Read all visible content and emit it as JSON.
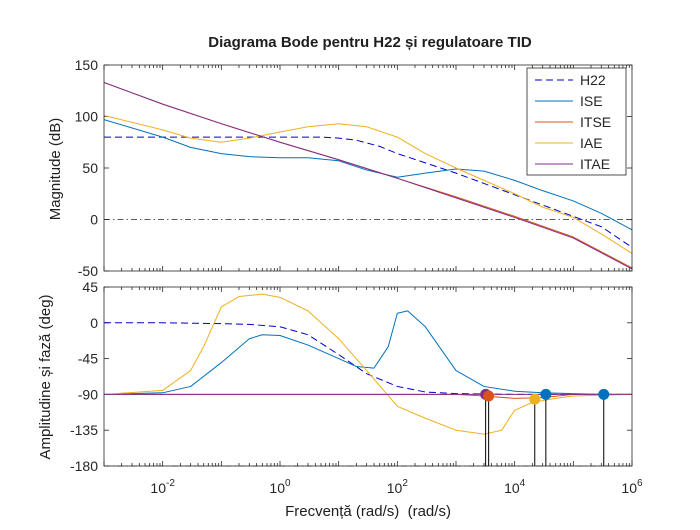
{
  "chart_data": {
    "type": "line",
    "title": "Diagrama Bode pentru H22 și regulatoare TID",
    "xlabel": "Frecvență (rad/s)  (rad/s)",
    "xscale": "log",
    "xlim": [
      0.001,
      1000000
    ],
    "x_tick_labels": [
      {
        "value": 0.01,
        "base": "10",
        "exp": "-2"
      },
      {
        "value": 1,
        "base": "10",
        "exp": "0"
      },
      {
        "value": 100,
        "base": "10",
        "exp": "2"
      },
      {
        "value": 10000,
        "base": "10",
        "exp": "4"
      },
      {
        "value": 1000000,
        "base": "10",
        "exp": "6"
      }
    ],
    "colors": {
      "H22": "#0000c8",
      "ISE": "#0072bd",
      "ITSE": "#d95319",
      "IAE": "#edb120",
      "ITAE": "#7e2f8e"
    },
    "legend": {
      "placement": "top-right",
      "entries": [
        "H22",
        "ISE",
        "ITSE",
        "IAE",
        "ITAE"
      ]
    },
    "magnitude": {
      "ylabel": "Magnitude (dB)",
      "ylim": [
        -50,
        150
      ],
      "yticks": [
        "-50",
        "0",
        "50",
        "100",
        "150"
      ],
      "reference_line": 0,
      "series": [
        {
          "name": "H22",
          "style": "dashed",
          "points": [
            [
              0.001,
              80
            ],
            [
              0.01,
              80
            ],
            [
              0.1,
              80
            ],
            [
              1,
              80
            ],
            [
              5,
              80
            ],
            [
              10,
              79
            ],
            [
              20,
              77
            ],
            [
              50,
              71
            ],
            [
              100,
              64
            ],
            [
              300,
              55
            ],
            [
              1000,
              45
            ],
            [
              3000,
              35
            ],
            [
              10000,
              24
            ],
            [
              30000,
              14
            ],
            [
              100000,
              3
            ],
            [
              300000,
              -7
            ],
            [
              1000000,
              -27
            ]
          ]
        },
        {
          "name": "ISE",
          "style": "solid",
          "points": [
            [
              0.001,
              97
            ],
            [
              0.01,
              80
            ],
            [
              0.03,
              70
            ],
            [
              0.1,
              64
            ],
            [
              0.3,
              61
            ],
            [
              1,
              60
            ],
            [
              3,
              60
            ],
            [
              10,
              57
            ],
            [
              30,
              48
            ],
            [
              100,
              41
            ],
            [
              300,
              45
            ],
            [
              1000,
              49
            ],
            [
              3000,
              47
            ],
            [
              10000,
              38
            ],
            [
              30000,
              28
            ],
            [
              100000,
              18
            ],
            [
              300000,
              6
            ],
            [
              1000000,
              -10
            ]
          ]
        },
        {
          "name": "ITSE",
          "style": "solid",
          "points": [
            [
              0.001,
              133
            ],
            [
              0.01,
              112
            ],
            [
              0.1,
              93
            ],
            [
              1,
              75
            ],
            [
              10,
              58
            ],
            [
              100,
              40
            ],
            [
              1000,
              22
            ],
            [
              10000,
              3
            ],
            [
              100000,
              -17
            ],
            [
              1000000,
              -47
            ]
          ]
        },
        {
          "name": "IAE",
          "style": "solid",
          "points": [
            [
              0.001,
              101
            ],
            [
              0.01,
              87
            ],
            [
              0.03,
              79
            ],
            [
              0.1,
              75
            ],
            [
              0.3,
              79
            ],
            [
              1,
              85
            ],
            [
              3,
              90
            ],
            [
              10,
              93
            ],
            [
              30,
              90
            ],
            [
              100,
              80
            ],
            [
              300,
              64
            ],
            [
              1000,
              50
            ],
            [
              3000,
              38
            ],
            [
              10000,
              25
            ],
            [
              30000,
              12
            ],
            [
              100000,
              2
            ],
            [
              300000,
              -14
            ],
            [
              1000000,
              -33
            ]
          ]
        },
        {
          "name": "ITAE",
          "style": "solid",
          "points": [
            [
              0.001,
              133
            ],
            [
              0.01,
              112
            ],
            [
              0.1,
              93
            ],
            [
              1,
              75
            ],
            [
              10,
              58
            ],
            [
              100,
              40
            ],
            [
              1000,
              21
            ],
            [
              10000,
              2
            ],
            [
              100000,
              -18
            ],
            [
              1000000,
              -48
            ]
          ]
        }
      ]
    },
    "phase": {
      "ylabel": "Amplitudine și fază (deg)",
      "ylim": [
        -180,
        45
      ],
      "yticks": [
        "-180",
        "-135",
        "-90",
        "-45",
        "0",
        "45"
      ],
      "reference_line": -180,
      "series": [
        {
          "name": "H22",
          "style": "dashed",
          "points": [
            [
              0.001,
              0
            ],
            [
              0.01,
              0
            ],
            [
              0.1,
              -1
            ],
            [
              0.3,
              -2
            ],
            [
              1,
              -5
            ],
            [
              3,
              -15
            ],
            [
              10,
              -40
            ],
            [
              30,
              -64
            ],
            [
              100,
              -80
            ],
            [
              300,
              -87
            ],
            [
              1000,
              -89
            ],
            [
              10000,
              -90
            ],
            [
              1000000,
              -90
            ]
          ]
        },
        {
          "name": "ISE",
          "style": "solid",
          "points": [
            [
              0.001,
              -90
            ],
            [
              0.01,
              -88
            ],
            [
              0.03,
              -80
            ],
            [
              0.1,
              -50
            ],
            [
              0.3,
              -20
            ],
            [
              0.5,
              -15
            ],
            [
              1,
              -16
            ],
            [
              3,
              -28
            ],
            [
              10,
              -45
            ],
            [
              20,
              -55
            ],
            [
              40,
              -57
            ],
            [
              70,
              -30
            ],
            [
              100,
              12
            ],
            [
              150,
              15
            ],
            [
              300,
              -5
            ],
            [
              1000,
              -60
            ],
            [
              3000,
              -80
            ],
            [
              10000,
              -86
            ],
            [
              30000,
              -88
            ],
            [
              100000,
              -89
            ],
            [
              300000,
              -90
            ],
            [
              1000000,
              -90
            ]
          ]
        },
        {
          "name": "ITSE",
          "style": "solid",
          "points": [
            [
              0.001,
              -90
            ],
            [
              10,
              -90
            ],
            [
              1000,
              -90
            ],
            [
              3000,
              -92
            ],
            [
              10000,
              -95
            ],
            [
              30000,
              -94
            ],
            [
              100000,
              -90
            ],
            [
              1000000,
              -90
            ]
          ]
        },
        {
          "name": "IAE",
          "style": "solid",
          "points": [
            [
              0.001,
              -90
            ],
            [
              0.01,
              -85
            ],
            [
              0.03,
              -60
            ],
            [
              0.05,
              -30
            ],
            [
              0.1,
              20
            ],
            [
              0.2,
              33
            ],
            [
              0.5,
              36
            ],
            [
              1,
              32
            ],
            [
              3,
              15
            ],
            [
              10,
              -20
            ],
            [
              30,
              -60
            ],
            [
              100,
              -105
            ],
            [
              300,
              -120
            ],
            [
              1000,
              -135
            ],
            [
              3000,
              -140
            ],
            [
              6000,
              -135
            ],
            [
              10000,
              -110
            ],
            [
              20000,
              -100
            ],
            [
              50000,
              -95
            ],
            [
              100000,
              -92
            ],
            [
              1000000,
              -90
            ]
          ]
        },
        {
          "name": "ITAE",
          "style": "solid",
          "points": [
            [
              0.001,
              -90
            ],
            [
              10,
              -90
            ],
            [
              100,
              -90
            ],
            [
              1000,
              -90
            ],
            [
              10000,
              -90
            ],
            [
              1000000,
              -90
            ]
          ]
        }
      ],
      "markers": [
        {
          "series": "ITAE",
          "x": 3200,
          "y": -90,
          "color": "#7e2f8e"
        },
        {
          "series": "ITSE",
          "x": 3600,
          "y": -92,
          "color": "#d95319"
        },
        {
          "series": "IAE",
          "x": 22000,
          "y": -96,
          "color": "#edb120"
        },
        {
          "series": "ISE",
          "x": 34000,
          "y": -90,
          "color": "#0072bd"
        },
        {
          "series": "ISE",
          "x": 330000,
          "y": -90,
          "color": "#0072bd"
        }
      ]
    }
  }
}
